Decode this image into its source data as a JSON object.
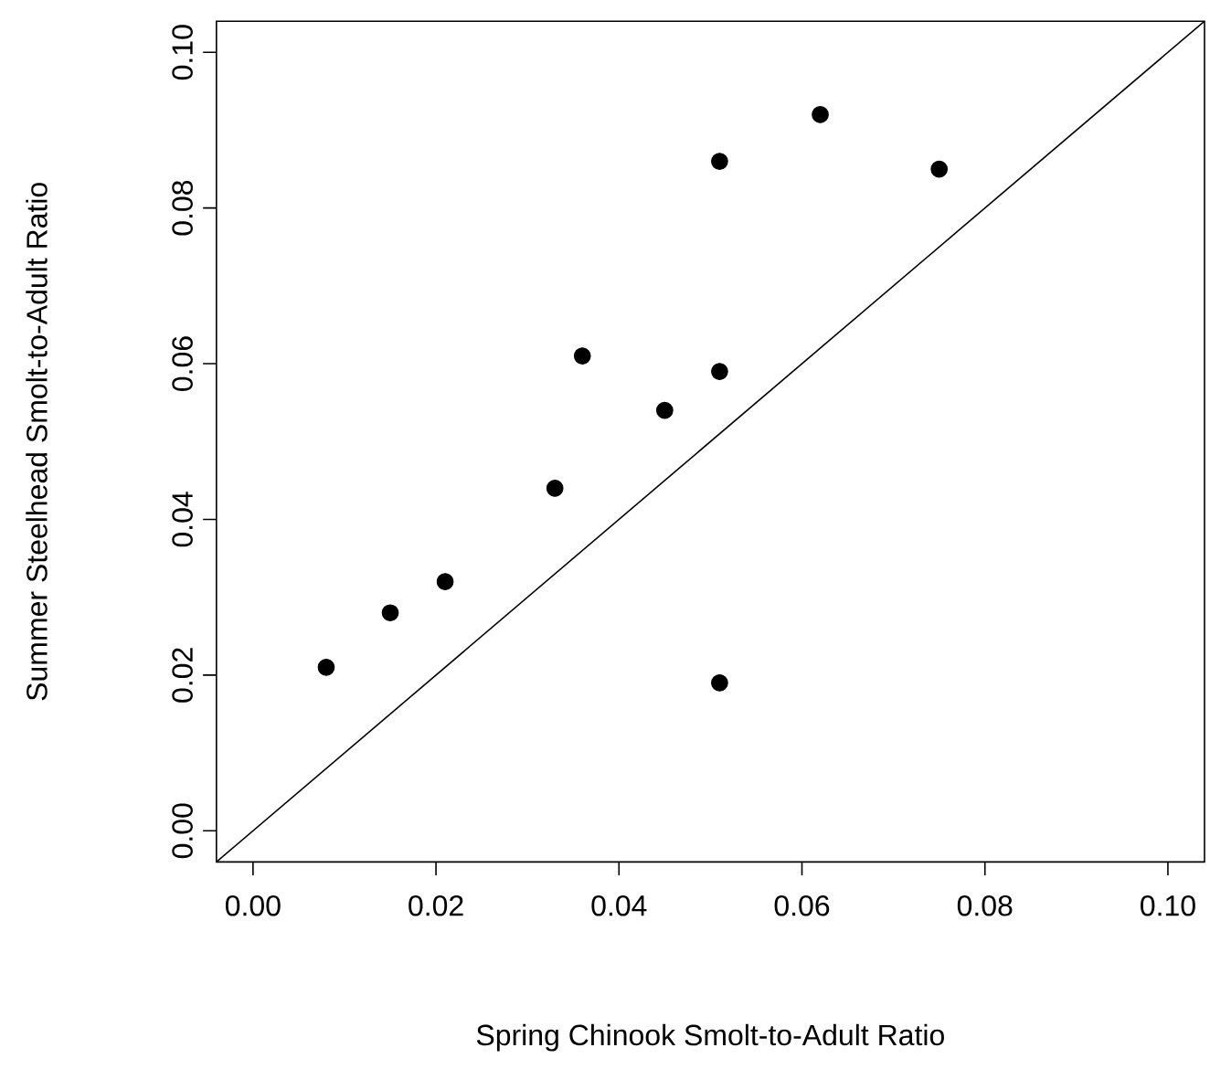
{
  "chart_data": {
    "type": "scatter",
    "xlabel": "Spring Chinook Smolt-to-Adult Ratio",
    "ylabel": "Summer Steelhead Smolt-to-Adult Ratio",
    "xlim": [
      -0.004,
      0.104
    ],
    "ylim": [
      -0.004,
      0.104
    ],
    "xticks": [
      {
        "value": 0,
        "label": "0.00"
      },
      {
        "value": 0.02,
        "label": "0.02"
      },
      {
        "value": 0.04,
        "label": "0.04"
      },
      {
        "value": 0.06,
        "label": "0.06"
      },
      {
        "value": 0.08,
        "label": "0.08"
      },
      {
        "value": 0.1,
        "label": "0.10"
      }
    ],
    "yticks": [
      {
        "value": 0,
        "label": "0.00"
      },
      {
        "value": 0.02,
        "label": "0.02"
      },
      {
        "value": 0.04,
        "label": "0.04"
      },
      {
        "value": 0.06,
        "label": "0.06"
      },
      {
        "value": 0.08,
        "label": "0.08"
      },
      {
        "value": 0.1,
        "label": "0.10"
      }
    ],
    "series": [
      {
        "color": "#000000",
        "marker": "circle",
        "x": [
          0.008,
          0.015,
          0.021,
          0.033,
          0.051,
          0.036,
          0.045,
          0.051,
          0.051,
          0.062,
          0.075
        ],
        "values": [
          0.021,
          0.028,
          0.032,
          0.044,
          0.019,
          0.061,
          0.054,
          0.059,
          0.086,
          0.092,
          0.085
        ]
      },
      {
        "type": "line",
        "color": "#000000",
        "marker": "none",
        "x": [
          -0.004,
          0.104
        ],
        "values": [
          -0.004,
          0.104
        ]
      }
    ],
    "grid": false
  }
}
